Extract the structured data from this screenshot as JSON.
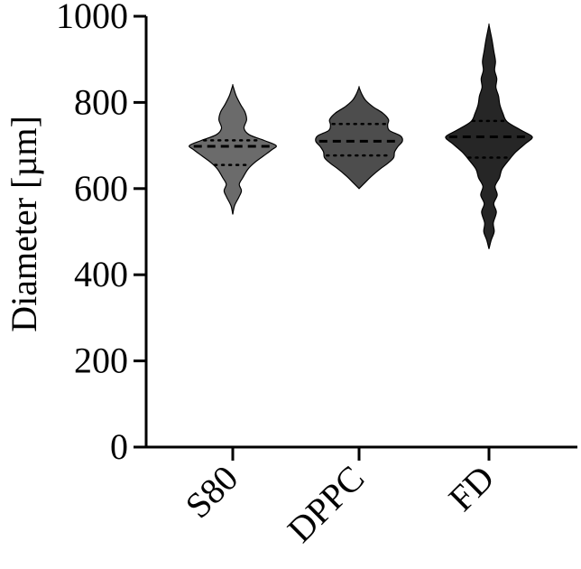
{
  "chart_data": {
    "type": "violin",
    "title": "",
    "xlabel": "",
    "ylabel": "Diameter [µm]",
    "ylim": [
      0,
      1000
    ],
    "yticks": [
      0,
      200,
      400,
      600,
      800,
      1000
    ],
    "categories": [
      "S80",
      "DPPC",
      "FD"
    ],
    "grid": false,
    "legend": "none",
    "violins": [
      {
        "category": "S80",
        "color": "#6b6b6b",
        "min": 540,
        "max": 840,
        "q1": 655,
        "median": 698,
        "q3": 712,
        "profile": [
          [
            540,
            0
          ],
          [
            560,
            0.04
          ],
          [
            580,
            0.14
          ],
          [
            595,
            0.2
          ],
          [
            610,
            0.15
          ],
          [
            625,
            0.23
          ],
          [
            645,
            0.35
          ],
          [
            660,
            0.5
          ],
          [
            675,
            0.7
          ],
          [
            690,
            0.9
          ],
          [
            700,
            1.0
          ],
          [
            712,
            0.72
          ],
          [
            725,
            0.38
          ],
          [
            740,
            0.26
          ],
          [
            760,
            0.32
          ],
          [
            778,
            0.28
          ],
          [
            795,
            0.18
          ],
          [
            815,
            0.08
          ],
          [
            830,
            0.03
          ],
          [
            840,
            0
          ]
        ]
      },
      {
        "category": "DPPC",
        "color": "#4d4d4d",
        "min": 600,
        "max": 835,
        "q1": 677,
        "median": 710,
        "q3": 750,
        "profile": [
          [
            600,
            0
          ],
          [
            612,
            0.12
          ],
          [
            628,
            0.28
          ],
          [
            645,
            0.48
          ],
          [
            660,
            0.68
          ],
          [
            672,
            0.8
          ],
          [
            685,
            0.82
          ],
          [
            698,
            0.9
          ],
          [
            710,
            1.0
          ],
          [
            722,
            0.96
          ],
          [
            735,
            0.7
          ],
          [
            748,
            0.66
          ],
          [
            760,
            0.68
          ],
          [
            775,
            0.55
          ],
          [
            790,
            0.32
          ],
          [
            805,
            0.15
          ],
          [
            820,
            0.06
          ],
          [
            835,
            0
          ]
        ]
      },
      {
        "category": "FD",
        "color": "#262626",
        "min": 460,
        "max": 980,
        "q1": 672,
        "median": 720,
        "q3": 757,
        "profile": [
          [
            460,
            0
          ],
          [
            480,
            0.05
          ],
          [
            500,
            0.12
          ],
          [
            520,
            0.1
          ],
          [
            545,
            0.17
          ],
          [
            565,
            0.11
          ],
          [
            585,
            0.19
          ],
          [
            605,
            0.14
          ],
          [
            625,
            0.24
          ],
          [
            645,
            0.3
          ],
          [
            665,
            0.45
          ],
          [
            685,
            0.62
          ],
          [
            705,
            0.85
          ],
          [
            720,
            1.0
          ],
          [
            735,
            0.75
          ],
          [
            755,
            0.42
          ],
          [
            775,
            0.32
          ],
          [
            795,
            0.25
          ],
          [
            815,
            0.22
          ],
          [
            835,
            0.16
          ],
          [
            855,
            0.18
          ],
          [
            875,
            0.13
          ],
          [
            895,
            0.15
          ],
          [
            920,
            0.11
          ],
          [
            945,
            0.07
          ],
          [
            965,
            0.03
          ],
          [
            980,
            0
          ]
        ]
      }
    ]
  }
}
